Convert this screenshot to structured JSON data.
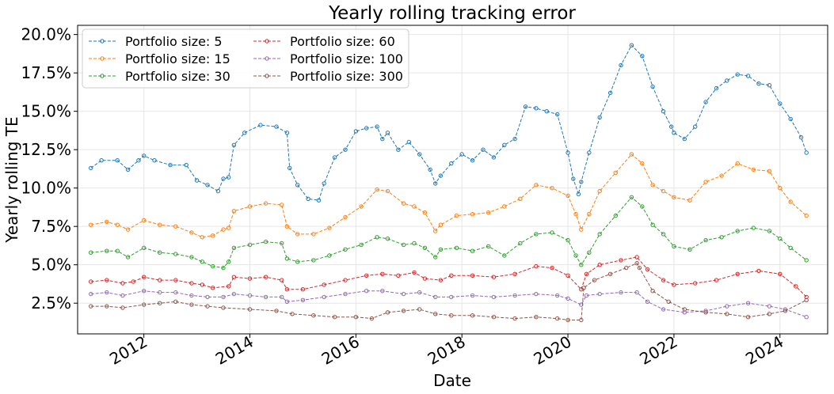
{
  "chart_data": {
    "type": "line",
    "title": "Yearly rolling tracking error",
    "xlabel": "Date",
    "ylabel": "Yearly rolling TE",
    "xlim": [
      2010.75,
      2024.9
    ],
    "ylim": [
      0.5,
      20.6
    ],
    "x_ticks": [
      2012,
      2014,
      2016,
      2018,
      2020,
      2022,
      2024
    ],
    "x_tick_labels": [
      "2012",
      "2014",
      "2016",
      "2018",
      "2020",
      "2022",
      "2024"
    ],
    "y_ticks": [
      2.5,
      5.0,
      7.5,
      10.0,
      12.5,
      15.0,
      17.5,
      20.0
    ],
    "y_tick_labels": [
      "2.5%",
      "5.0%",
      "7.5%",
      "10.0%",
      "12.5%",
      "15.0%",
      "17.5%",
      "20.0%"
    ],
    "grid": true,
    "legend_position": "top-left",
    "marker": "open-circle",
    "line_style": "dashed",
    "series": [
      {
        "name": "Portfolio size: 5",
        "color": "#1f77b4",
        "x": [
          2011.0,
          2011.2,
          2011.5,
          2011.7,
          2011.9,
          2012.0,
          2012.2,
          2012.5,
          2012.8,
          2013.0,
          2013.2,
          2013.4,
          2013.5,
          2013.6,
          2013.7,
          2013.9,
          2014.2,
          2014.5,
          2014.7,
          2014.75,
          2014.9,
          2015.1,
          2015.3,
          2015.4,
          2015.6,
          2015.8,
          2016.0,
          2016.2,
          2016.4,
          2016.5,
          2016.6,
          2016.8,
          2017.0,
          2017.2,
          2017.4,
          2017.5,
          2017.6,
          2017.8,
          2018.0,
          2018.2,
          2018.4,
          2018.6,
          2018.8,
          2019.0,
          2019.2,
          2019.4,
          2019.6,
          2019.8,
          2020.0,
          2020.1,
          2020.2,
          2020.25,
          2020.4,
          2020.6,
          2020.8,
          2021.0,
          2021.2,
          2021.4,
          2021.6,
          2021.8,
          2021.95,
          2022.0,
          2022.2,
          2022.4,
          2022.6,
          2022.8,
          2023.0,
          2023.2,
          2023.4,
          2023.6,
          2023.8,
          2024.0,
          2024.2,
          2024.4,
          2024.5
        ],
        "values": [
          11.3,
          11.8,
          11.8,
          11.2,
          11.8,
          12.1,
          11.8,
          11.5,
          11.5,
          10.5,
          10.2,
          9.8,
          10.6,
          10.7,
          12.8,
          13.6,
          14.1,
          14.0,
          13.6,
          11.3,
          10.2,
          9.3,
          9.2,
          10.3,
          12.0,
          12.5,
          13.7,
          13.9,
          14.0,
          13.2,
          13.6,
          12.5,
          13.0,
          12.2,
          11.2,
          10.3,
          10.8,
          11.6,
          12.2,
          11.8,
          12.5,
          12.0,
          12.8,
          13.2,
          15.3,
          15.2,
          15.0,
          14.8,
          12.3,
          10.6,
          9.6,
          10.4,
          12.3,
          14.6,
          16.2,
          18.0,
          19.3,
          18.6,
          16.6,
          15.0,
          14.0,
          13.6,
          13.2,
          14.0,
          15.6,
          16.5,
          17.0,
          17.4,
          17.3,
          16.8,
          16.7,
          15.5,
          14.5,
          13.3,
          12.3
        ]
      },
      {
        "name": "Portfolio size: 15",
        "color": "#ff7f0e",
        "x": [
          2011.0,
          2011.3,
          2011.5,
          2011.7,
          2012.0,
          2012.3,
          2012.6,
          2012.9,
          2013.1,
          2013.3,
          2013.5,
          2013.6,
          2013.7,
          2014.0,
          2014.3,
          2014.6,
          2014.7,
          2014.9,
          2015.2,
          2015.5,
          2015.8,
          2016.1,
          2016.4,
          2016.6,
          2016.9,
          2017.1,
          2017.3,
          2017.5,
          2017.6,
          2017.9,
          2018.2,
          2018.5,
          2018.8,
          2019.1,
          2019.4,
          2019.7,
          2020.0,
          2020.15,
          2020.25,
          2020.4,
          2020.6,
          2020.9,
          2021.2,
          2021.4,
          2021.6,
          2021.8,
          2022.0,
          2022.3,
          2022.6,
          2022.9,
          2023.2,
          2023.5,
          2023.8,
          2024.0,
          2024.2,
          2024.5
        ],
        "values": [
          7.6,
          7.8,
          7.6,
          7.3,
          7.9,
          7.6,
          7.5,
          7.1,
          6.8,
          6.9,
          7.3,
          7.4,
          8.5,
          8.8,
          9.0,
          8.9,
          7.5,
          7.0,
          7.0,
          7.4,
          8.1,
          8.8,
          9.9,
          9.8,
          9.0,
          8.8,
          8.4,
          7.2,
          7.6,
          8.2,
          8.3,
          8.4,
          8.8,
          9.3,
          10.2,
          10.0,
          9.5,
          8.3,
          7.3,
          8.3,
          9.8,
          11.0,
          12.2,
          11.6,
          10.2,
          9.8,
          9.4,
          9.2,
          10.4,
          10.8,
          11.6,
          11.2,
          11.1,
          10.0,
          9.1,
          8.2
        ]
      },
      {
        "name": "Portfolio size: 30",
        "color": "#2ca02c",
        "x": [
          2011.0,
          2011.3,
          2011.5,
          2011.7,
          2012.0,
          2012.3,
          2012.6,
          2012.9,
          2013.1,
          2013.3,
          2013.5,
          2013.6,
          2013.7,
          2014.0,
          2014.3,
          2014.6,
          2014.7,
          2014.9,
          2015.2,
          2015.5,
          2015.8,
          2016.1,
          2016.4,
          2016.6,
          2016.9,
          2017.1,
          2017.3,
          2017.5,
          2017.6,
          2017.9,
          2018.2,
          2018.5,
          2018.8,
          2019.1,
          2019.4,
          2019.7,
          2020.0,
          2020.15,
          2020.25,
          2020.4,
          2020.6,
          2020.9,
          2021.2,
          2021.4,
          2021.6,
          2021.8,
          2022.0,
          2022.3,
          2022.6,
          2022.9,
          2023.2,
          2023.5,
          2023.8,
          2024.0,
          2024.2,
          2024.5
        ],
        "values": [
          5.8,
          5.9,
          5.9,
          5.5,
          6.1,
          5.8,
          5.7,
          5.5,
          5.2,
          4.9,
          4.8,
          5.2,
          6.1,
          6.3,
          6.5,
          6.4,
          5.4,
          5.2,
          5.3,
          5.6,
          6.0,
          6.3,
          6.8,
          6.7,
          6.3,
          6.4,
          6.1,
          5.5,
          6.0,
          6.1,
          5.9,
          6.2,
          5.6,
          6.4,
          7.0,
          7.1,
          6.6,
          5.6,
          5.0,
          5.8,
          7.0,
          8.2,
          9.4,
          8.8,
          7.6,
          7.0,
          6.2,
          6.0,
          6.6,
          6.8,
          7.2,
          7.4,
          7.2,
          6.7,
          6.1,
          5.3
        ]
      },
      {
        "name": "Portfolio size: 60",
        "color": "#d62728",
        "x": [
          2011.0,
          2011.3,
          2011.6,
          2011.8,
          2012.0,
          2012.3,
          2012.6,
          2012.9,
          2013.1,
          2013.3,
          2013.6,
          2013.7,
          2014.0,
          2014.3,
          2014.6,
          2014.7,
          2015.0,
          2015.4,
          2015.8,
          2016.2,
          2016.5,
          2016.8,
          2017.1,
          2017.3,
          2017.6,
          2017.8,
          2018.2,
          2018.6,
          2019.0,
          2019.4,
          2019.7,
          2020.0,
          2020.25,
          2020.35,
          2020.6,
          2021.0,
          2021.3,
          2021.5,
          2021.8,
          2022.0,
          2022.4,
          2022.8,
          2023.2,
          2023.6,
          2024.0,
          2024.3,
          2024.5
        ],
        "values": [
          3.9,
          4.0,
          3.8,
          3.9,
          4.2,
          4.0,
          4.0,
          3.8,
          3.7,
          3.5,
          3.6,
          4.2,
          4.1,
          4.2,
          4.0,
          3.4,
          3.4,
          3.7,
          4.0,
          4.3,
          4.4,
          4.3,
          4.5,
          4.1,
          4.0,
          4.3,
          4.3,
          4.2,
          4.4,
          4.9,
          4.8,
          4.3,
          3.4,
          4.4,
          5.0,
          5.3,
          5.5,
          4.7,
          4.0,
          3.7,
          3.8,
          4.0,
          4.4,
          4.6,
          4.4,
          3.6,
          2.9
        ]
      },
      {
        "name": "Portfolio size: 100",
        "color": "#9467bd",
        "x": [
          2011.0,
          2011.3,
          2011.6,
          2012.0,
          2012.3,
          2012.6,
          2012.9,
          2013.2,
          2013.5,
          2013.7,
          2014.0,
          2014.3,
          2014.6,
          2014.7,
          2015.0,
          2015.4,
          2015.8,
          2016.2,
          2016.5,
          2016.9,
          2017.2,
          2017.5,
          2017.8,
          2018.2,
          2018.6,
          2019.0,
          2019.4,
          2019.8,
          2020.0,
          2020.25,
          2020.35,
          2020.6,
          2021.0,
          2021.3,
          2021.5,
          2021.8,
          2022.2,
          2022.6,
          2023.0,
          2023.4,
          2023.8,
          2024.1,
          2024.5
        ],
        "values": [
          3.1,
          3.2,
          3.0,
          3.3,
          3.2,
          3.2,
          3.0,
          2.9,
          2.9,
          3.1,
          3.0,
          2.9,
          2.9,
          2.6,
          2.7,
          2.9,
          3.1,
          3.3,
          3.3,
          3.1,
          3.2,
          2.9,
          2.9,
          3.0,
          2.9,
          3.0,
          3.1,
          3.0,
          2.8,
          2.4,
          3.0,
          3.1,
          3.2,
          3.2,
          2.6,
          2.1,
          1.9,
          2.0,
          2.3,
          2.5,
          2.3,
          2.1,
          1.6
        ]
      },
      {
        "name": "Portfolio size: 300",
        "color": "#8c564b",
        "x": [
          2011.0,
          2011.3,
          2011.6,
          2012.0,
          2012.3,
          2012.6,
          2012.9,
          2013.2,
          2013.5,
          2014.0,
          2014.5,
          2014.8,
          2015.2,
          2015.6,
          2016.0,
          2016.3,
          2016.6,
          2016.9,
          2017.2,
          2017.5,
          2017.8,
          2018.2,
          2018.6,
          2019.0,
          2019.4,
          2019.8,
          2020.0,
          2020.25,
          2020.3,
          2020.5,
          2020.8,
          2021.1,
          2021.3,
          2021.35,
          2021.6,
          2021.9,
          2022.2,
          2022.6,
          2023.0,
          2023.4,
          2023.8,
          2024.1,
          2024.5
        ],
        "values": [
          2.3,
          2.3,
          2.2,
          2.4,
          2.5,
          2.6,
          2.4,
          2.3,
          2.2,
          2.1,
          2.0,
          1.8,
          1.7,
          1.6,
          1.6,
          1.5,
          1.9,
          2.0,
          2.1,
          1.8,
          1.7,
          1.7,
          1.6,
          1.5,
          1.6,
          1.5,
          1.4,
          1.4,
          3.5,
          4.0,
          4.4,
          4.8,
          5.1,
          4.8,
          3.3,
          2.6,
          2.1,
          1.9,
          1.8,
          1.6,
          1.8,
          2.0,
          2.7
        ]
      }
    ]
  }
}
